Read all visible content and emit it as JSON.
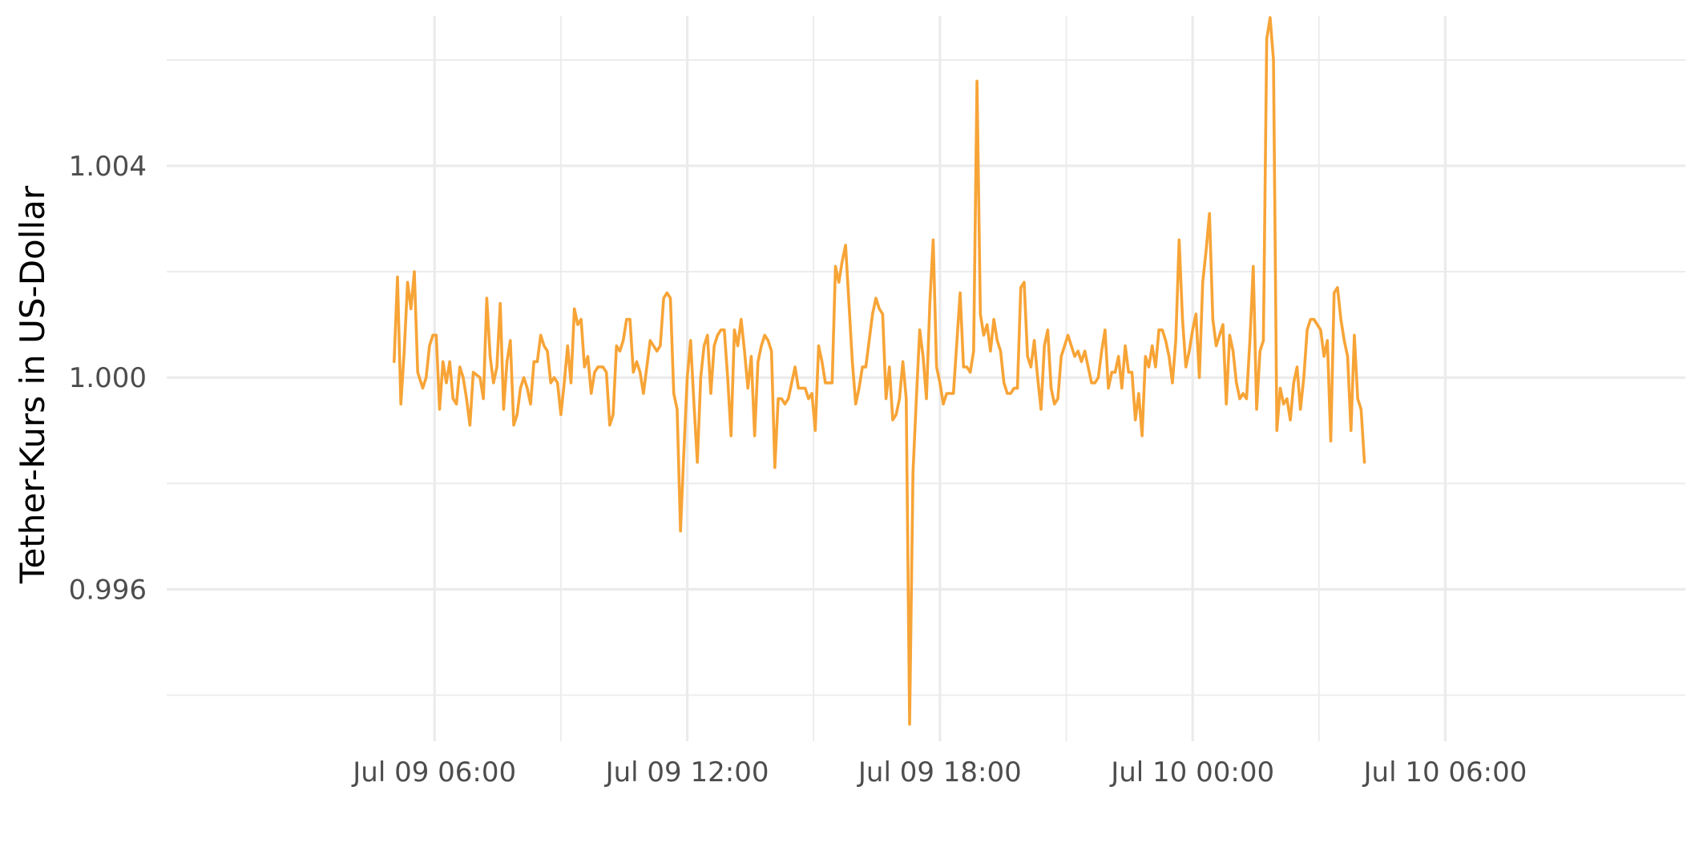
{
  "chart_data": {
    "type": "line",
    "title": "",
    "xlabel": "",
    "ylabel": "Tether-Kurs in US-Dollar",
    "grid": true,
    "legend": "none",
    "colors": {
      "line": "#F7A437",
      "grid": "#EBEBEB",
      "tick_text": "#4D4D4D",
      "axis_title": "#000000"
    },
    "x_range_hours": [
      -0.36,
      35.7
    ],
    "y_range": [
      0.99313,
      1.00683
    ],
    "y_ticks": [
      {
        "value": 0.996,
        "label": "0.996"
      },
      {
        "value": 1.0,
        "label": "1.000"
      },
      {
        "value": 1.004,
        "label": "1.004"
      }
    ],
    "x_ticks": [
      {
        "hours": 6,
        "label": "Jul 09 06:00"
      },
      {
        "hours": 12,
        "label": "Jul 09 12:00"
      },
      {
        "hours": 18,
        "label": "Jul 09 18:00"
      },
      {
        "hours": 24,
        "label": "Jul 10 00:00"
      },
      {
        "hours": 30,
        "label": "Jul 10 06:00"
      }
    ],
    "series": [
      {
        "x_unit": "hours since Jul 09 00:00",
        "points": [
          [
            5.04,
            1.0003
          ],
          [
            5.12,
            1.0019
          ],
          [
            5.2,
            0.9995
          ],
          [
            5.28,
            1.0005
          ],
          [
            5.36,
            1.0018
          ],
          [
            5.44,
            1.0013
          ],
          [
            5.52,
            1.002
          ],
          [
            5.6,
            1.0001
          ],
          [
            5.72,
            0.9998
          ],
          [
            5.8,
            1.0
          ],
          [
            5.88,
            1.0006
          ],
          [
            5.96,
            1.0008
          ],
          [
            6.04,
            1.0008
          ],
          [
            6.12,
            0.9994
          ],
          [
            6.2,
            1.0003
          ],
          [
            6.28,
            0.9999
          ],
          [
            6.36,
            1.0003
          ],
          [
            6.44,
            0.9996
          ],
          [
            6.52,
            0.9995
          ],
          [
            6.6,
            1.0002
          ],
          [
            6.68,
            1.0
          ],
          [
            6.76,
            0.9996
          ],
          [
            6.84,
            0.9991
          ],
          [
            6.92,
            1.0001
          ],
          [
            7.08,
            1.0
          ],
          [
            7.16,
            0.9996
          ],
          [
            7.24,
            1.0015
          ],
          [
            7.32,
            1.0004
          ],
          [
            7.4,
            0.9999
          ],
          [
            7.48,
            1.0002
          ],
          [
            7.56,
            1.0014
          ],
          [
            7.64,
            0.9994
          ],
          [
            7.72,
            1.0003
          ],
          [
            7.8,
            1.0007
          ],
          [
            7.88,
            0.9991
          ],
          [
            7.96,
            0.9993
          ],
          [
            8.04,
            0.9998
          ],
          [
            8.12,
            1.0
          ],
          [
            8.2,
            0.9998
          ],
          [
            8.28,
            0.9995
          ],
          [
            8.36,
            1.0003
          ],
          [
            8.44,
            1.0003
          ],
          [
            8.52,
            1.0008
          ],
          [
            8.6,
            1.0006
          ],
          [
            8.68,
            1.0005
          ],
          [
            8.76,
            0.9999
          ],
          [
            8.84,
            1.0
          ],
          [
            8.92,
            0.9999
          ],
          [
            9.0,
            0.9993
          ],
          [
            9.08,
            0.9999
          ],
          [
            9.16,
            1.0006
          ],
          [
            9.24,
            0.9999
          ],
          [
            9.32,
            1.0013
          ],
          [
            9.4,
            1.001
          ],
          [
            9.48,
            1.0011
          ],
          [
            9.56,
            1.0002
          ],
          [
            9.64,
            1.0004
          ],
          [
            9.72,
            0.9997
          ],
          [
            9.8,
            1.0001
          ],
          [
            9.88,
            1.0002
          ],
          [
            10.0,
            1.0002
          ],
          [
            10.08,
            1.0001
          ],
          [
            10.16,
            0.9991
          ],
          [
            10.24,
            0.9993
          ],
          [
            10.32,
            1.0006
          ],
          [
            10.4,
            1.0005
          ],
          [
            10.48,
            1.0007
          ],
          [
            10.56,
            1.0011
          ],
          [
            10.64,
            1.0011
          ],
          [
            10.72,
            1.0001
          ],
          [
            10.8,
            1.0003
          ],
          [
            10.88,
            1.0001
          ],
          [
            10.96,
            0.9997
          ],
          [
            11.04,
            1.0002
          ],
          [
            11.12,
            1.0007
          ],
          [
            11.2,
            1.0006
          ],
          [
            11.28,
            1.0005
          ],
          [
            11.36,
            1.0006
          ],
          [
            11.44,
            1.0015
          ],
          [
            11.52,
            1.0016
          ],
          [
            11.6,
            1.0015
          ],
          [
            11.68,
            0.9997
          ],
          [
            11.76,
            0.9994
          ],
          [
            11.84,
            0.9971
          ],
          [
            11.92,
            0.9986
          ],
          [
            12.0,
            1.0
          ],
          [
            12.08,
            1.0007
          ],
          [
            12.16,
            0.9995
          ],
          [
            12.24,
            0.9984
          ],
          [
            12.32,
            1.0
          ],
          [
            12.4,
            1.0006
          ],
          [
            12.48,
            1.0008
          ],
          [
            12.56,
            0.9997
          ],
          [
            12.64,
            1.0006
          ],
          [
            12.72,
            1.0008
          ],
          [
            12.8,
            1.0009
          ],
          [
            12.88,
            1.0009
          ],
          [
            12.96,
            1.0
          ],
          [
            13.04,
            0.9989
          ],
          [
            13.12,
            1.0009
          ],
          [
            13.2,
            1.0006
          ],
          [
            13.28,
            1.0011
          ],
          [
            13.36,
            1.0005
          ],
          [
            13.44,
            0.9998
          ],
          [
            13.52,
            1.0004
          ],
          [
            13.6,
            0.9989
          ],
          [
            13.68,
            1.0003
          ],
          [
            13.76,
            1.0006
          ],
          [
            13.84,
            1.0008
          ],
          [
            13.92,
            1.0007
          ],
          [
            14.0,
            1.0005
          ],
          [
            14.08,
            0.9983
          ],
          [
            14.16,
            0.9996
          ],
          [
            14.24,
            0.9996
          ],
          [
            14.32,
            0.9995
          ],
          [
            14.4,
            0.9996
          ],
          [
            14.48,
            0.9999
          ],
          [
            14.56,
            1.0002
          ],
          [
            14.64,
            0.9998
          ],
          [
            14.72,
            0.9998
          ],
          [
            14.8,
            0.9998
          ],
          [
            14.88,
            0.9996
          ],
          [
            14.96,
            0.9997
          ],
          [
            15.04,
            0.999
          ],
          [
            15.12,
            1.0006
          ],
          [
            15.2,
            1.0003
          ],
          [
            15.28,
            0.9999
          ],
          [
            15.36,
            0.9999
          ],
          [
            15.44,
            0.9999
          ],
          [
            15.52,
            1.0021
          ],
          [
            15.6,
            1.0018
          ],
          [
            15.68,
            1.0022
          ],
          [
            15.76,
            1.0025
          ],
          [
            15.84,
            1.0014
          ],
          [
            15.92,
            1.0003
          ],
          [
            16.0,
            0.9995
          ],
          [
            16.08,
            0.9998
          ],
          [
            16.16,
            1.0002
          ],
          [
            16.24,
            1.0002
          ],
          [
            16.32,
            1.0007
          ],
          [
            16.4,
            1.0012
          ],
          [
            16.48,
            1.0015
          ],
          [
            16.56,
            1.0013
          ],
          [
            16.64,
            1.0012
          ],
          [
            16.72,
            0.9996
          ],
          [
            16.8,
            1.0002
          ],
          [
            16.88,
            0.9992
          ],
          [
            16.96,
            0.9993
          ],
          [
            17.04,
            0.9996
          ],
          [
            17.12,
            1.0003
          ],
          [
            17.2,
            0.9996
          ],
          [
            17.28,
            0.99345
          ],
          [
            17.36,
            0.9982
          ],
          [
            17.44,
            0.9996
          ],
          [
            17.52,
            1.0009
          ],
          [
            17.6,
            1.0004
          ],
          [
            17.68,
            0.9996
          ],
          [
            17.76,
            1.0014
          ],
          [
            17.84,
            1.0026
          ],
          [
            17.92,
            1.0002
          ],
          [
            18.0,
            0.9999
          ],
          [
            18.08,
            0.9995
          ],
          [
            18.16,
            0.9997
          ],
          [
            18.24,
            0.9997
          ],
          [
            18.32,
            0.9997
          ],
          [
            18.48,
            1.0016
          ],
          [
            18.56,
            1.0002
          ],
          [
            18.64,
            1.0002
          ],
          [
            18.72,
            1.0001
          ],
          [
            18.8,
            1.0005
          ],
          [
            18.88,
            1.0056
          ],
          [
            18.96,
            1.0012
          ],
          [
            19.04,
            1.0008
          ],
          [
            19.12,
            1.001
          ],
          [
            19.2,
            1.0005
          ],
          [
            19.28,
            1.0011
          ],
          [
            19.36,
            1.0007
          ],
          [
            19.44,
            1.0005
          ],
          [
            19.52,
            0.9999
          ],
          [
            19.6,
            0.9997
          ],
          [
            19.68,
            0.9997
          ],
          [
            19.76,
            0.9998
          ],
          [
            19.84,
            0.9998
          ],
          [
            19.92,
            1.0017
          ],
          [
            20.0,
            1.0018
          ],
          [
            20.08,
            1.0004
          ],
          [
            20.16,
            1.0002
          ],
          [
            20.24,
            1.0007
          ],
          [
            20.32,
            1.0
          ],
          [
            20.4,
            0.9994
          ],
          [
            20.48,
            1.0006
          ],
          [
            20.56,
            1.0009
          ],
          [
            20.64,
            0.9998
          ],
          [
            20.72,
            0.9995
          ],
          [
            20.8,
            0.9996
          ],
          [
            20.88,
            1.0004
          ],
          [
            20.96,
            1.0006
          ],
          [
            21.04,
            1.0008
          ],
          [
            21.12,
            1.0006
          ],
          [
            21.2,
            1.0004
          ],
          [
            21.28,
            1.0005
          ],
          [
            21.36,
            1.0003
          ],
          [
            21.44,
            1.0005
          ],
          [
            21.52,
            1.0002
          ],
          [
            21.6,
            0.9999
          ],
          [
            21.68,
            0.9999
          ],
          [
            21.76,
            1.0
          ],
          [
            21.84,
            1.0005
          ],
          [
            21.92,
            1.0009
          ],
          [
            22.0,
            0.9998
          ],
          [
            22.08,
            1.0001
          ],
          [
            22.16,
            1.0001
          ],
          [
            22.24,
            1.0004
          ],
          [
            22.32,
            0.9998
          ],
          [
            22.4,
            1.0006
          ],
          [
            22.48,
            1.0001
          ],
          [
            22.56,
            1.0001
          ],
          [
            22.64,
            0.9992
          ],
          [
            22.72,
            0.9997
          ],
          [
            22.8,
            0.9989
          ],
          [
            22.88,
            1.0004
          ],
          [
            22.96,
            1.0002
          ],
          [
            23.04,
            1.0006
          ],
          [
            23.12,
            1.0002
          ],
          [
            23.2,
            1.0009
          ],
          [
            23.28,
            1.0009
          ],
          [
            23.36,
            1.0007
          ],
          [
            23.44,
            1.0004
          ],
          [
            23.52,
            0.9999
          ],
          [
            23.6,
            1.0007
          ],
          [
            23.68,
            1.0026
          ],
          [
            23.76,
            1.0011
          ],
          [
            23.84,
            1.0002
          ],
          [
            23.92,
            1.0005
          ],
          [
            24.0,
            1.0009
          ],
          [
            24.08,
            1.0012
          ],
          [
            24.16,
            1.0
          ],
          [
            24.24,
            1.0018
          ],
          [
            24.32,
            1.0024
          ],
          [
            24.4,
            1.0031
          ],
          [
            24.48,
            1.0011
          ],
          [
            24.56,
            1.0006
          ],
          [
            24.64,
            1.0008
          ],
          [
            24.72,
            1.001
          ],
          [
            24.8,
            0.9995
          ],
          [
            24.88,
            1.0008
          ],
          [
            24.96,
            1.0005
          ],
          [
            25.04,
            0.9999
          ],
          [
            25.12,
            0.9996
          ],
          [
            25.2,
            0.9997
          ],
          [
            25.28,
            0.9996
          ],
          [
            25.36,
            1.0007
          ],
          [
            25.44,
            1.0021
          ],
          [
            25.52,
            0.9994
          ],
          [
            25.6,
            1.0005
          ],
          [
            25.68,
            1.0007
          ],
          [
            25.76,
            1.0064
          ],
          [
            25.84,
            1.0068
          ],
          [
            25.92,
            1.006
          ],
          [
            26.0,
            0.999
          ],
          [
            26.08,
            0.9998
          ],
          [
            26.16,
            0.9995
          ],
          [
            26.24,
            0.9996
          ],
          [
            26.32,
            0.9992
          ],
          [
            26.4,
            0.9999
          ],
          [
            26.48,
            1.0002
          ],
          [
            26.56,
            0.9994
          ],
          [
            26.64,
            1.0
          ],
          [
            26.72,
            1.0009
          ],
          [
            26.8,
            1.0011
          ],
          [
            26.88,
            1.0011
          ],
          [
            26.96,
            1.001
          ],
          [
            27.04,
            1.0009
          ],
          [
            27.12,
            1.0004
          ],
          [
            27.2,
            1.0007
          ],
          [
            27.28,
            0.9988
          ],
          [
            27.36,
            1.0016
          ],
          [
            27.44,
            1.0017
          ],
          [
            27.52,
            1.0011
          ],
          [
            27.6,
            1.0007
          ],
          [
            27.68,
            1.0004
          ],
          [
            27.76,
            0.999
          ],
          [
            27.84,
            1.0008
          ],
          [
            27.92,
            0.9996
          ],
          [
            28.0,
            0.9994
          ],
          [
            28.08,
            0.9984
          ]
        ]
      }
    ]
  }
}
